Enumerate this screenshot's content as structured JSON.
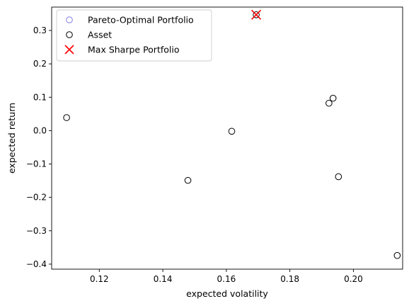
{
  "chart_data": {
    "type": "scatter",
    "xlabel": "expected volatility",
    "ylabel": "expected return",
    "xlim": [
      0.105,
      0.2155
    ],
    "ylim": [
      -0.415,
      0.37
    ],
    "xticks": [
      0.12,
      0.14,
      0.16,
      0.18,
      0.2
    ],
    "xtick_labels": [
      "0.12",
      "0.14",
      "0.16",
      "0.18",
      "0.20"
    ],
    "yticks": [
      0.3,
      0.2,
      0.1,
      0.0,
      -0.1,
      -0.2,
      -0.3,
      -0.4
    ],
    "ytick_labels": [
      "0.3",
      "0.2",
      "0.1",
      "0.0",
      "−0.1",
      "−0.2",
      "−0.3",
      "−0.4"
    ],
    "grid": false,
    "legend_position": "top-left",
    "series": [
      {
        "name": "Pareto-Optimal Portfolio",
        "marker": "open-circle",
        "color": "#8080e6",
        "x": [],
        "y": []
      },
      {
        "name": "Asset",
        "marker": "open-circle",
        "color": "#000000",
        "x": [
          0.1097,
          0.1479,
          0.1617,
          0.1694,
          0.1923,
          0.1936,
          0.1953,
          0.2138
        ],
        "y": [
          0.039,
          -0.149,
          -0.002,
          0.347,
          0.082,
          0.097,
          -0.138,
          -0.374
        ]
      },
      {
        "name": "Max Sharpe Portfolio",
        "marker": "x",
        "color": "#ff0000",
        "x": [
          0.1694
        ],
        "y": [
          0.347
        ]
      }
    ]
  }
}
